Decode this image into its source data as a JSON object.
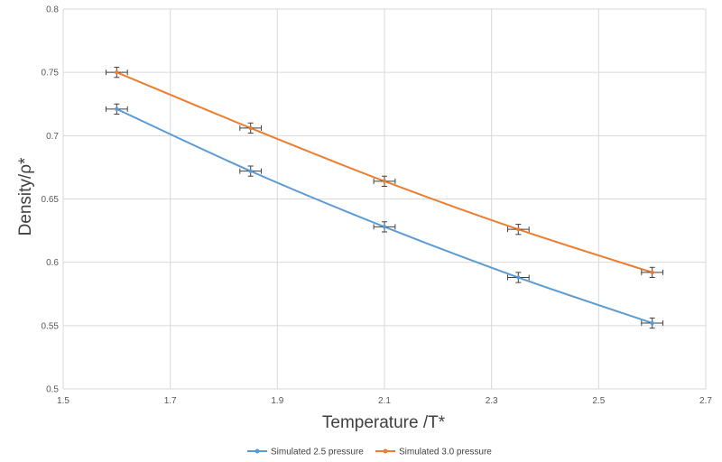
{
  "chart_data": {
    "type": "line",
    "title": "",
    "xlabel": "Temperature /T*",
    "ylabel": "Density/ρ*",
    "xlim": [
      1.5,
      2.7
    ],
    "ylim": [
      0.5,
      0.8
    ],
    "xticks": [
      "1.5",
      "1.7",
      "1.9",
      "2.1",
      "2.3",
      "2.5",
      "2.7"
    ],
    "yticks": [
      "0.5",
      "0.55",
      "0.6",
      "0.65",
      "0.7",
      "0.75",
      "0.8"
    ],
    "grid": true,
    "legend_position": "bottom",
    "x": [
      1.6,
      1.85,
      2.1,
      2.35,
      2.6
    ],
    "series": [
      {
        "name": "Simulated 2.5 pressure",
        "color": "#5B9BD5",
        "values": [
          0.721,
          0.672,
          0.628,
          0.588,
          0.552
        ],
        "x_error": 0.02,
        "y_error": 0.004
      },
      {
        "name": "Simulated 3.0 pressure",
        "color": "#ED7D31",
        "values": [
          0.75,
          0.706,
          0.664,
          0.626,
          0.592
        ],
        "x_error": 0.02,
        "y_error": 0.004
      }
    ]
  }
}
